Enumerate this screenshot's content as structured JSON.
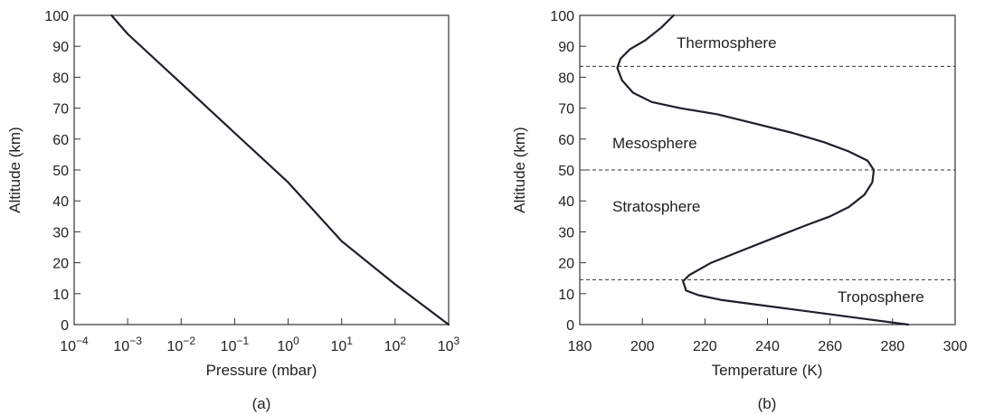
{
  "chart_data": [
    {
      "type": "line",
      "panel_label": "(a)",
      "xlabel": "Pressure (mbar)",
      "ylabel": "Altitude (km)",
      "xscale": "log",
      "xlim": [
        0.0001,
        1000
      ],
      "ylim": [
        0,
        100
      ],
      "x_ticks": [
        {
          "base": "10",
          "exp": "−4"
        },
        {
          "base": "10",
          "exp": "−3"
        },
        {
          "base": "10",
          "exp": "−2"
        },
        {
          "base": "10",
          "exp": "−1"
        },
        {
          "base": "10",
          "exp": "0"
        },
        {
          "base": "10",
          "exp": "1"
        },
        {
          "base": "10",
          "exp": "2"
        },
        {
          "base": "10",
          "exp": "3"
        }
      ],
      "y_ticks": [
        "0",
        "10",
        "20",
        "30",
        "40",
        "50",
        "60",
        "70",
        "80",
        "90",
        "100"
      ],
      "grid": false,
      "series": [
        {
          "x": [
            1000,
            100,
            10,
            1,
            0.1,
            0.01,
            0.001,
            0.0005
          ],
          "y": [
            0,
            13,
            27,
            46,
            62,
            78,
            94,
            100
          ]
        }
      ]
    },
    {
      "type": "line",
      "panel_label": "(b)",
      "xlabel": "Temperature (K)",
      "ylabel": "Altitude (km)",
      "xlim": [
        180,
        300
      ],
      "ylim": [
        0,
        100
      ],
      "x_ticks": [
        "180",
        "200",
        "220",
        "240",
        "260",
        "280",
        "300"
      ],
      "y_ticks": [
        "0",
        "10",
        "20",
        "30",
        "40",
        "50",
        "60",
        "70",
        "80",
        "90",
        "100"
      ],
      "grid": false,
      "series": [
        {
          "x": [
            285,
            270,
            255,
            240,
            225,
            218,
            214,
            213,
            215,
            222,
            232,
            242,
            252,
            260,
            266,
            271,
            273.5,
            274,
            272,
            266,
            258,
            248,
            236,
            224,
            212,
            203,
            197,
            193.5,
            192,
            193,
            196,
            201,
            206,
            210
          ],
          "y": [
            0,
            2,
            4,
            6,
            8,
            9.5,
            11,
            14,
            16,
            20,
            24,
            28,
            32,
            35,
            38,
            42,
            46,
            50,
            53,
            56,
            59,
            62,
            65,
            68,
            70,
            72,
            75,
            79,
            83,
            86,
            89,
            92,
            96,
            100
          ]
        }
      ],
      "boundaries_km": [
        14.5,
        50,
        83.5
      ],
      "region_labels": [
        "Thermosphere",
        "Mesosphere",
        "Stratosphere",
        "Troposphere"
      ]
    }
  ]
}
